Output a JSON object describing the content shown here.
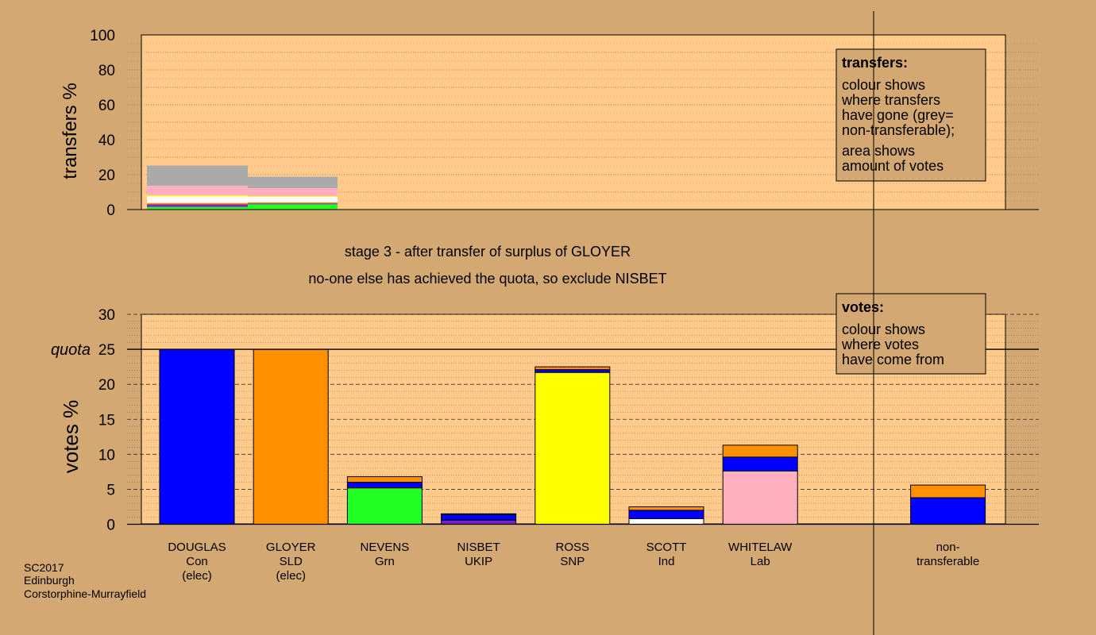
{
  "colors": {
    "background": "#d4a872",
    "plot_background": "#ffca8a",
    "Con": "#0000ff",
    "SLD": "#ff9000",
    "Grn": "#22ff22",
    "UKIP": "#7722cc",
    "SNP": "#ffff00",
    "Ind": "#ffffff",
    "Lab": "#ffb0c0",
    "nontransferable": "#aaaaaa"
  },
  "stage_title": "stage 3 - after transfer of surplus of GLOYER",
  "stage_subtitle": "no-one else has achieved the quota, so exclude NISBET",
  "footer": [
    "SC2017",
    "Edinburgh",
    "Corstorphine-Murrayfield"
  ],
  "chart_data": [
    {
      "type": "bar",
      "stacked": true,
      "name": "transfers",
      "ylabel": "transfers %",
      "ylim": [
        0,
        100
      ],
      "yticks": [
        0,
        20,
        40,
        60,
        80,
        100
      ],
      "legend": {
        "title": "transfers:",
        "lines": [
          "colour shows",
          "where transfers",
          "have gone (grey=",
          "non-transferable);",
          "area shows",
          "amount of votes"
        ],
        "placement": "top-right"
      },
      "columns": [
        {
          "candidate": "DOUGLAS",
          "segments": [
            {
              "party": "Grn",
              "value": 1.5
            },
            {
              "party": "UKIP",
              "value": 1.5
            },
            {
              "party": "SLD",
              "value": 0.8
            },
            {
              "party": "Ind",
              "value": 3.8
            },
            {
              "party": "SNP",
              "value": 0.6
            },
            {
              "party": "Lab",
              "value": 5.5
            },
            {
              "party": "nontransferable",
              "value": 11.5
            }
          ]
        },
        {
          "candidate": "GLOYER",
          "segments": [
            {
              "party": "Grn",
              "value": 3.0
            },
            {
              "party": "UKIP",
              "value": 0.5
            },
            {
              "party": "SLD",
              "value": 0.6
            },
            {
              "party": "Ind",
              "value": 3.2
            },
            {
              "party": "SNP",
              "value": 0.5
            },
            {
              "party": "Lab",
              "value": 4.5
            },
            {
              "party": "nontransferable",
              "value": 6.5
            }
          ]
        }
      ]
    },
    {
      "type": "bar",
      "stacked": true,
      "name": "votes",
      "ylabel": "votes %",
      "ylim": [
        0,
        30
      ],
      "yticks": [
        0,
        5,
        10,
        15,
        20,
        25,
        30
      ],
      "quota": 25,
      "quota_label": "quota",
      "legend": {
        "title": "votes:",
        "lines": [
          "colour shows",
          "where votes",
          "have come from"
        ],
        "placement": "top-right"
      },
      "categories": [
        {
          "name": "DOUGLAS",
          "party": "Con",
          "status": "(elec)"
        },
        {
          "name": "GLOYER",
          "party": "SLD",
          "status": "(elec)"
        },
        {
          "name": "NEVENS",
          "party": "Grn",
          "status": ""
        },
        {
          "name": "NISBET",
          "party": "UKIP",
          "status": ""
        },
        {
          "name": "ROSS",
          "party": "SNP",
          "status": ""
        },
        {
          "name": "SCOTT",
          "party": "Ind",
          "status": ""
        },
        {
          "name": "WHITELAW",
          "party": "Lab",
          "status": ""
        },
        {
          "name": "",
          "party": "",
          "status": ""
        },
        {
          "name": "non-",
          "party": "transferable",
          "status": ""
        }
      ],
      "stacks": [
        [
          {
            "party": "Con",
            "value": 25.0
          }
        ],
        [
          {
            "party": "SLD",
            "value": 25.0
          }
        ],
        [
          {
            "party": "Grn",
            "value": 5.2
          },
          {
            "party": "Con",
            "value": 0.8
          },
          {
            "party": "SLD",
            "value": 0.8
          }
        ],
        [
          {
            "party": "UKIP",
            "value": 0.6
          },
          {
            "party": "Con",
            "value": 0.8
          },
          {
            "party": "SLD",
            "value": 0.1
          }
        ],
        [
          {
            "party": "SNP",
            "value": 21.7
          },
          {
            "party": "Con",
            "value": 0.4
          },
          {
            "party": "SLD",
            "value": 0.4
          }
        ],
        [
          {
            "party": "Ind",
            "value": 0.8
          },
          {
            "party": "Con",
            "value": 1.2
          },
          {
            "party": "SLD",
            "value": 0.5
          }
        ],
        [
          {
            "party": "Lab",
            "value": 7.6
          },
          {
            "party": "Con",
            "value": 2.0
          },
          {
            "party": "SLD",
            "value": 1.7
          }
        ],
        [],
        [
          {
            "party": "Con",
            "value": 3.8
          },
          {
            "party": "SLD",
            "value": 1.8
          }
        ]
      ]
    }
  ]
}
